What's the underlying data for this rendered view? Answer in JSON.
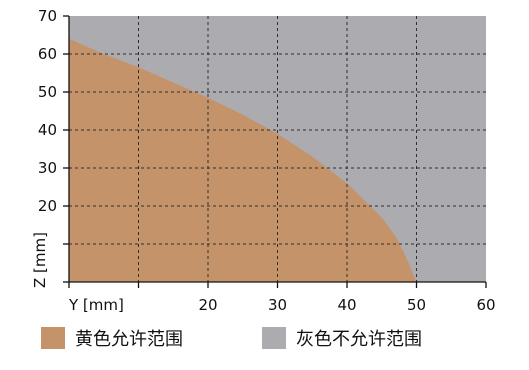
{
  "chart_data": {
    "type": "area",
    "xlabel": "Y [mm]",
    "ylabel": "Z [mm]",
    "xlim": [
      0,
      60
    ],
    "ylim": [
      0,
      70
    ],
    "grid": true,
    "legend_placement": "bottom",
    "x_ticks": [
      {
        "value": 0,
        "label": "Y [mm]"
      },
      {
        "value": 10,
        "label": ""
      },
      {
        "value": 20,
        "label": "20"
      },
      {
        "value": 30,
        "label": "30"
      },
      {
        "value": 40,
        "label": "40"
      },
      {
        "value": 50,
        "label": "50"
      },
      {
        "value": 60,
        "label": "60"
      }
    ],
    "y_ticks": [
      {
        "value": 0,
        "label": ""
      },
      {
        "value": 10,
        "label": ""
      },
      {
        "value": 20,
        "label": "20"
      },
      {
        "value": 30,
        "label": "30"
      },
      {
        "value": 40,
        "label": "40"
      },
      {
        "value": 50,
        "label": "50"
      },
      {
        "value": 60,
        "label": "60"
      },
      {
        "value": 70,
        "label": "70"
      }
    ],
    "boundary": {
      "x": [
        0,
        5,
        10,
        15,
        20,
        25,
        30,
        35,
        40,
        45,
        47,
        48,
        49,
        49.5,
        50
      ],
      "y": [
        64,
        60,
        56.5,
        52.5,
        48.5,
        44,
        39,
        33,
        26,
        17,
        12,
        8.5,
        4.5,
        2,
        0
      ]
    },
    "series": [
      {
        "name": "黄色允许范围",
        "color": "#C4936A"
      },
      {
        "name": "灰色不允许范围",
        "color": "#ABABB0"
      }
    ]
  },
  "colors": {
    "allowed_fill": "#C4936A",
    "forbidden_fill": "#ABABB0",
    "grid_line": "#2f2f2f",
    "axis_line": "#111111"
  }
}
